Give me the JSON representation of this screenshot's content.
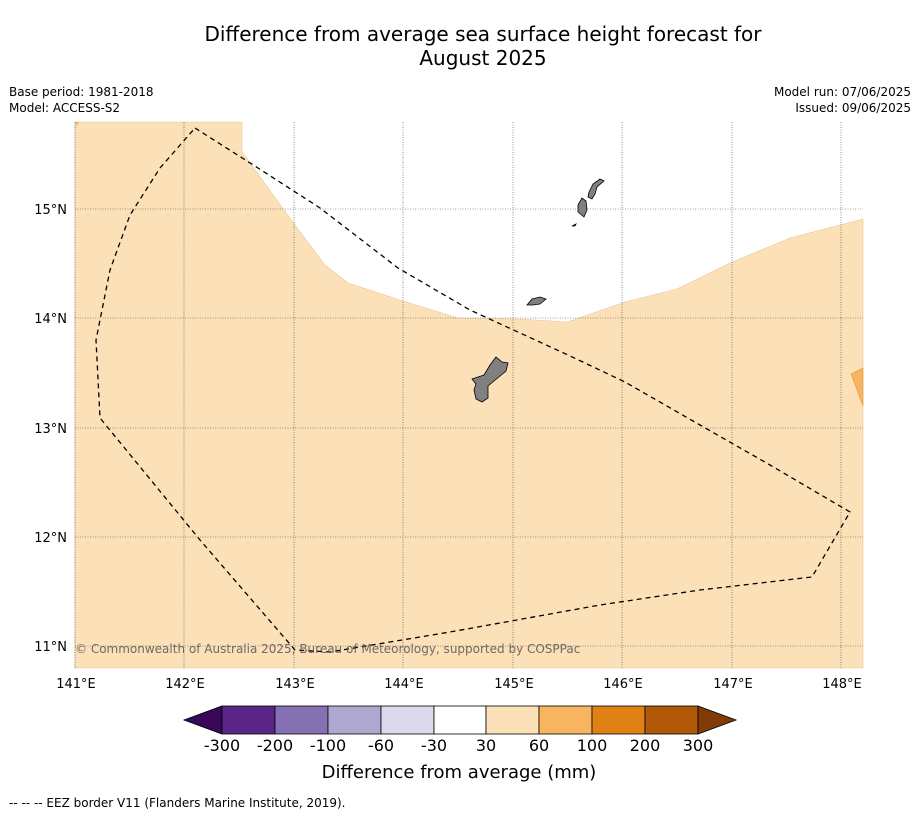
{
  "title": {
    "line1": "Difference from average sea surface height forecast for",
    "line2": "August 2025"
  },
  "meta": {
    "base_period": "Base period: 1981-2018",
    "model": "Model: ACCESS-S2",
    "model_run": "Model run: 07/06/2025",
    "issued": "Issued: 09/06/2025"
  },
  "map": {
    "lon_labels": [
      "141°E",
      "142°E",
      "143°E",
      "144°E",
      "145°E",
      "146°E",
      "147°E",
      "148°E"
    ],
    "lat_labels": [
      "15°N",
      "14°N",
      "13°N",
      "12°N",
      "11°N"
    ],
    "copyright": "© Commonwealth of Australia 2025, Bureau of Meteorology, supported by COSPPac",
    "colors": {
      "class_30_60": "#fce0b7",
      "class_60_100": "#f8b55f",
      "land": "#808080",
      "background": "#ffffff"
    }
  },
  "colorbar": {
    "ticks": [
      "-300",
      "-200",
      "-100",
      "-60",
      "-30",
      "30",
      "60",
      "100",
      "200",
      "300"
    ],
    "label": "Difference from average (mm)",
    "colors": [
      "#3b0758",
      "#5a2489",
      "#8471b2",
      "#b0a7d1",
      "#dadaec",
      "#ffffff",
      "#fce0b7",
      "#f8b55f",
      "#e08114",
      "#b25807",
      "#7f3b08"
    ]
  },
  "footer": "--  --  -- EEZ border V11 (Flanders Marine Institute, 2019)."
}
